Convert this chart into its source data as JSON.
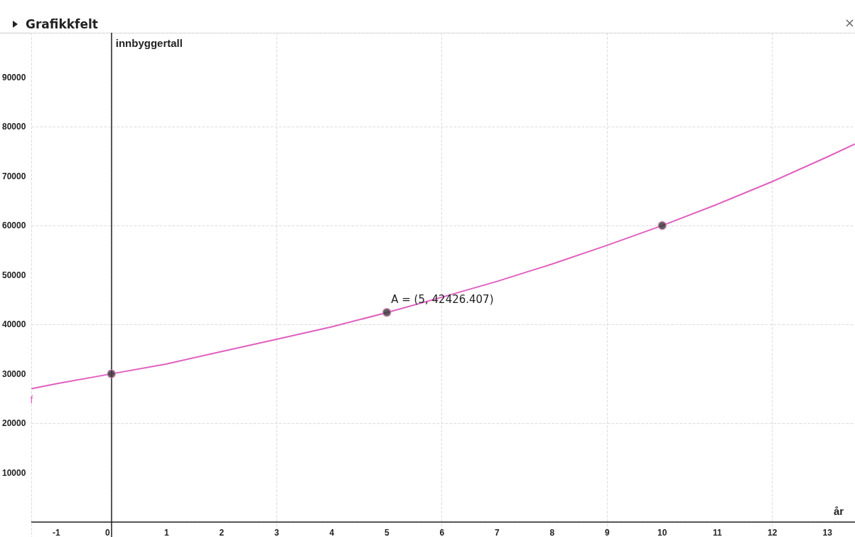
{
  "chart_data": {
    "type": "line",
    "title": "Grafikkfelt",
    "xlabel": "år",
    "ylabel": "innbyggertall",
    "xlim": [
      -1.45,
      13.5
    ],
    "ylim": [
      -3000,
      99000
    ],
    "xticks": [
      -1,
      0,
      1,
      2,
      3,
      4,
      5,
      6,
      7,
      8,
      9,
      10,
      11,
      12,
      13
    ],
    "yticks": [
      10000,
      20000,
      30000,
      40000,
      50000,
      60000,
      70000,
      80000,
      90000
    ],
    "grid": true,
    "legend": false,
    "series": [
      {
        "name": "f",
        "color": "#e060c0",
        "marker": "none",
        "x": [
          -1.45,
          -1,
          0,
          1,
          2,
          3,
          4,
          5,
          6,
          7,
          8,
          9,
          10,
          11,
          12,
          13,
          13.5
        ],
        "values": [
          27000,
          28000,
          30000,
          32000,
          34500,
          37000,
          39500,
          42400,
          45500,
          48700,
          52200,
          56000,
          60000,
          64300,
          68900,
          73900,
          76500
        ]
      },
      {
        "type": "scatter",
        "color": "#333333",
        "marker": "circle",
        "x": [
          0,
          5,
          10
        ],
        "values": [
          30000,
          42426.407,
          60000
        ]
      }
    ],
    "annotations": [
      {
        "text": "A = (5, 42426.407)",
        "x": 5,
        "y": 42426.407
      }
    ]
  }
}
